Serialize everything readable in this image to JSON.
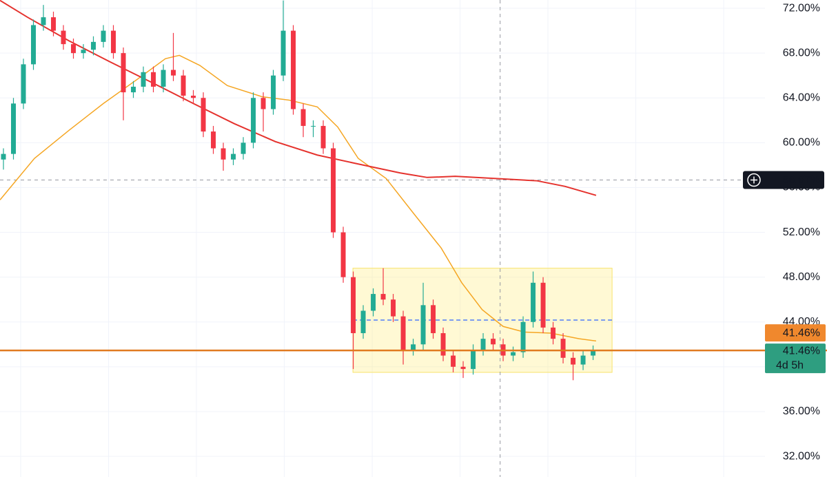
{
  "chart_data": {
    "type": "candlestick",
    "up_color": "#22ab94",
    "down_color": "#f23645",
    "x": [
      0,
      1,
      2,
      3,
      4,
      5,
      6,
      7,
      8,
      9,
      10,
      11,
      12,
      13,
      14,
      15,
      16,
      17,
      18,
      19,
      20,
      21,
      22,
      23,
      24,
      25,
      26,
      27,
      28,
      29,
      30,
      31,
      32,
      33,
      34,
      35,
      36,
      37,
      38,
      39,
      40,
      41,
      42,
      43,
      44,
      45,
      46,
      47,
      48,
      49,
      50,
      51,
      52,
      53,
      54,
      55,
      56,
      57,
      58,
      59
    ],
    "open": [
      58.5,
      59,
      63.5,
      67,
      70.5,
      71.2,
      70,
      68.8,
      68,
      68.3,
      69,
      70,
      68,
      64.5,
      65,
      66.3,
      65,
      66.5,
      66,
      64.2,
      64,
      61,
      59.5,
      58.5,
      59,
      60,
      64,
      63,
      66,
      70,
      63,
      61.5,
      61.5,
      59.5,
      52,
      48,
      43,
      45,
      46.5,
      46,
      44.5,
      41.5,
      42,
      45.5,
      43,
      41,
      40,
      39.8,
      41.5,
      42.5,
      42,
      41,
      41.3,
      44,
      47.5,
      43.5,
      42.5,
      40.8,
      40.2,
      41
    ],
    "high": [
      59.5,
      64,
      67.5,
      71,
      72.3,
      71.7,
      70.5,
      69.3,
      68.8,
      69.5,
      70.5,
      70.5,
      68.5,
      65.5,
      66.8,
      66.8,
      67,
      69.8,
      66.5,
      64.7,
      64.5,
      61.5,
      60,
      59.5,
      60.5,
      64.5,
      64.5,
      66.5,
      72.7,
      70.5,
      63.5,
      62,
      62,
      60,
      52.5,
      48.5,
      45.5,
      47,
      48.8,
      46.5,
      45,
      42.5,
      47.5,
      46,
      43.5,
      41.5,
      40.5,
      42,
      43,
      43,
      42.5,
      41.8,
      44.5,
      48.5,
      48,
      44,
      43,
      41.3,
      41.5,
      41.9
    ],
    "low": [
      57.6,
      58.5,
      63,
      66.5,
      70,
      69.5,
      68.3,
      67.5,
      67.5,
      67.8,
      68.5,
      67.5,
      62,
      64,
      64.5,
      64.5,
      64.5,
      65.5,
      63.7,
      63.5,
      60.5,
      59,
      57.5,
      58,
      58.5,
      59.5,
      61,
      62.5,
      65.5,
      62.5,
      60.5,
      60.5,
      59,
      51.5,
      47.5,
      39.8,
      42.5,
      44.5,
      45.5,
      44,
      40.2,
      41,
      41.5,
      42.5,
      40.5,
      39.5,
      39,
      39.3,
      41,
      41.5,
      40.5,
      40.5,
      40.8,
      43.5,
      43,
      42,
      40.3,
      38.8,
      39.7,
      40.6
    ],
    "close": [
      59,
      63.5,
      67,
      70.5,
      71.2,
      70,
      68.8,
      68,
      68.3,
      69,
      70,
      68,
      64.5,
      65,
      66.3,
      65,
      66.5,
      66,
      64.2,
      64,
      61,
      59.5,
      58.5,
      59,
      60,
      64,
      63,
      66,
      70,
      63,
      61.5,
      61.5,
      59.5,
      52,
      48,
      43,
      45,
      46.5,
      46,
      44.5,
      41.5,
      42,
      45.5,
      43,
      41,
      40,
      39.8,
      41.5,
      42.5,
      42,
      41,
      41.3,
      44,
      47.5,
      43.5,
      42.5,
      40.8,
      40.2,
      41,
      41.46
    ],
    "xlim": [
      -0.345,
      76.2
    ],
    "ylim": [
      30.16,
      72.74
    ],
    "xticks": [
      1.72,
      10.52,
      19.31,
      28.1,
      36.9,
      45.69,
      54.48,
      63.28,
      72.07
    ],
    "yticks": [
      {
        "value": 72,
        "label": "72.00%"
      },
      {
        "value": 68,
        "label": "68.00%"
      },
      {
        "value": 64,
        "label": "64.00%"
      },
      {
        "value": 60,
        "label": "60.00%"
      },
      {
        "value": 56,
        "label": "56.00%"
      },
      {
        "value": 52,
        "label": "52.00%"
      },
      {
        "value": 48,
        "label": "48.00%"
      },
      {
        "value": 44,
        "label": "44.00%"
      },
      {
        "value": 40,
        "label": "40.00%"
      },
      {
        "value": 36,
        "label": "36.00%"
      },
      {
        "value": 32,
        "label": "32.00%"
      }
    ],
    "grid": true,
    "moving_averages": [
      {
        "color": "#f5a623",
        "x": [
          -0.34,
          3.1,
          6.55,
          10,
          13.45,
          16.2,
          17.6,
          19.65,
          22.4,
          25.9,
          28.6,
          31.4,
          33.45,
          35.5,
          38.3,
          41.03,
          43.8,
          45.86,
          47.9,
          50,
          52.1,
          54.8,
          57.6,
          59.3
        ],
        "values": [
          54.9,
          58.6,
          61.1,
          63.5,
          65.7,
          67.5,
          67.8,
          66.9,
          65.1,
          64.1,
          63.8,
          63.2,
          61.4,
          58.6,
          56.8,
          53.7,
          50.6,
          47.5,
          45.1,
          43.6,
          43.1,
          43,
          42.5,
          42.3
        ]
      },
      {
        "color": "#e5322d",
        "x": [
          -0.34,
          2.41,
          6.55,
          10.7,
          14.8,
          19,
          23.1,
          27.2,
          31.4,
          35.5,
          39.7,
          42.4,
          45.2,
          49.3,
          53.4,
          56.2,
          59.3
        ],
        "values": [
          72.7,
          71.2,
          69.1,
          67.2,
          65.4,
          63.5,
          61.7,
          60.1,
          58.9,
          58.1,
          57.3,
          56.9,
          57,
          56.8,
          56.6,
          56.1,
          55.3
        ]
      }
    ],
    "zone": {
      "xlim": [
        34.97,
        60.9
      ],
      "ylim": [
        39.5,
        48.8
      ],
      "mid": 44.17
    },
    "crosshair": {
      "x": 49.7,
      "y": 56.67,
      "label": "56.67%"
    },
    "last_price": {
      "value": 41.46,
      "labels": [
        "41.46%",
        "41.46%"
      ],
      "countdown": "4d 5h"
    }
  }
}
